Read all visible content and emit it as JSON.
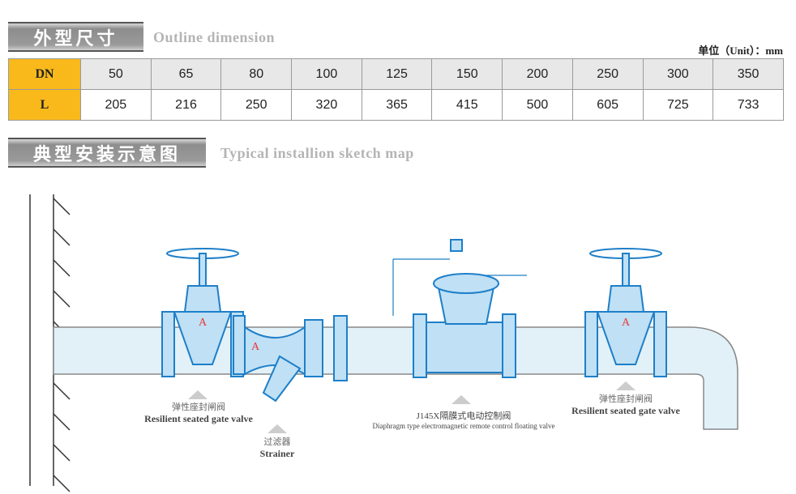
{
  "section1": {
    "title_zh": "外型尺寸",
    "title_en": "Outline dimension",
    "unit": "单位（Unit）：mm"
  },
  "table": {
    "rows": [
      {
        "label": "DN",
        "values": [
          "50",
          "65",
          "80",
          "100",
          "125",
          "150",
          "200",
          "250",
          "300",
          "350"
        ]
      },
      {
        "label": "L",
        "values": [
          "205",
          "216",
          "250",
          "320",
          "365",
          "415",
          "500",
          "605",
          "725",
          "733"
        ]
      }
    ]
  },
  "section2": {
    "title_zh": "典型安装示意图",
    "title_en": "Typical  installion sketch map"
  },
  "diagram": {
    "gate_valve_1": {
      "zh": "弹性座封闸阀",
      "en": "Resilient seated gate valve"
    },
    "strainer": {
      "zh": "过滤器",
      "en": "Strainer"
    },
    "control_valve": {
      "zh": "J145X隔膜式电动控制阀",
      "en": "Diaphragm type electromagnetic remote control floating valve"
    },
    "gate_valve_2": {
      "zh": "弹性座封闸阀",
      "en": "Resilient seated gate valve"
    },
    "colors": {
      "valve": "#1e7fc8",
      "valve_fill": "#bfe0f5",
      "pipe": "#e2f1f8",
      "header_cell": "#f9b91b"
    }
  }
}
